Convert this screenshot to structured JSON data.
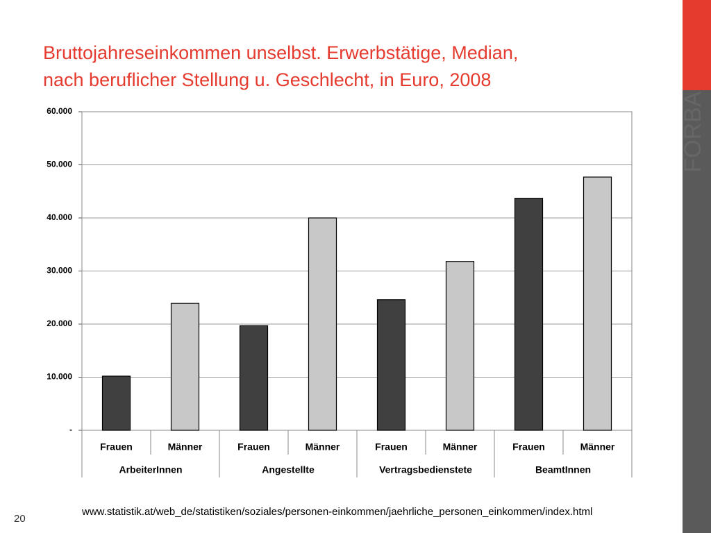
{
  "chart_data": {
    "type": "bar",
    "title": [
      "Bruttojahreseinkommen unselbst. Erwerbstätige, Median,",
      "nach beruflicher Stellung u. Geschlecht, in Euro, 2008"
    ],
    "categories": [
      "Frauen",
      "Männer",
      "Frauen",
      "Männer",
      "Frauen",
      "Männer",
      "Frauen",
      "Männer"
    ],
    "groups": [
      "ArbeiterInnen",
      "Angestellte",
      "Vertragsbedienstete",
      "BeamtInnen"
    ],
    "values": [
      10200,
      23900,
      19700,
      40000,
      24600,
      31800,
      43700,
      47700
    ],
    "colors": [
      "#404040",
      "#c8c8c8",
      "#404040",
      "#c8c8c8",
      "#404040",
      "#c8c8c8",
      "#404040",
      "#c8c8c8"
    ],
    "ylim": [
      0,
      60000
    ],
    "yticks": [
      {
        "value": 0,
        "label": "-"
      },
      {
        "value": 10000,
        "label": "10.000"
      },
      {
        "value": 20000,
        "label": "20.000"
      },
      {
        "value": 30000,
        "label": "30.000"
      },
      {
        "value": 40000,
        "label": "40.000"
      },
      {
        "value": 50000,
        "label": "50.000"
      },
      {
        "value": 60000,
        "label": "60.000"
      }
    ],
    "grid": true
  },
  "footer": {
    "page": "20",
    "source": "www.statistik.at/web_de/statistiken/soziales/personen-einkommen/jaehrliche_personen_einkommen/index.html",
    "logo": "FORBA"
  }
}
